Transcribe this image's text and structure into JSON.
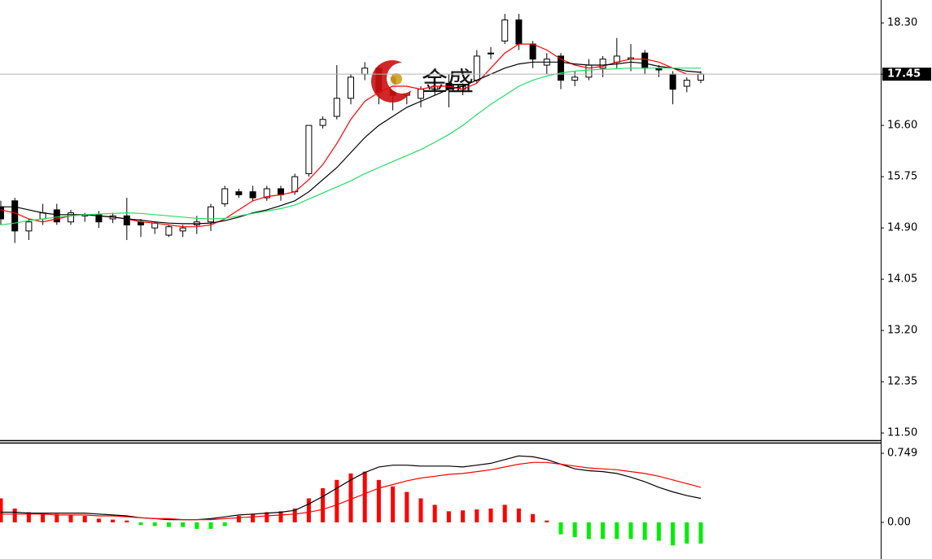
{
  "chart_data": [
    {
      "type": "candlestick",
      "watermark": "金盛",
      "ylim": [
        11.38,
        18.68
      ],
      "yticks": [
        {
          "value": 18.3,
          "label": "18.30"
        },
        17.45,
        {
          "value": 16.6,
          "label": "16.60"
        },
        15.75,
        {
          "value": 14.9,
          "label": "14.90"
        },
        14.05,
        {
          "value": 13.2,
          "label": "13.20"
        },
        12.35,
        {
          "value": 11.5,
          "label": "11.50"
        }
      ],
      "current_price": 17.45,
      "up_color": "#ffffff",
      "down_color": "#000000",
      "outline_color": "#000000",
      "open": [
        15.25,
        15.35,
        14.85,
        15.05,
        15.2,
        15.0,
        15.1,
        15.12,
        15.05,
        15.1,
        15.0,
        14.9,
        14.78,
        14.85,
        14.95,
        15.0,
        15.3,
        15.5,
        15.5,
        15.4,
        15.55,
        15.5,
        15.8,
        16.6,
        16.75,
        17.05,
        17.45,
        17.55,
        17.4,
        17.1,
        17.05,
        17.2,
        17.3,
        17.2,
        17.35,
        17.8,
        18.0,
        18.35,
        17.95,
        17.6,
        17.75,
        17.35,
        17.4,
        17.55,
        17.65,
        17.7,
        17.8,
        17.55,
        17.45,
        17.25,
        17.35
      ],
      "high": [
        15.35,
        15.4,
        15.05,
        15.3,
        15.3,
        15.2,
        15.15,
        15.18,
        15.15,
        15.4,
        15.05,
        15.0,
        14.95,
        14.95,
        15.1,
        15.3,
        15.6,
        15.55,
        15.6,
        15.6,
        15.6,
        15.8,
        16.6,
        16.75,
        17.6,
        17.45,
        17.65,
        17.6,
        17.45,
        17.3,
        17.25,
        17.4,
        17.45,
        17.3,
        17.85,
        17.9,
        18.45,
        18.45,
        18.0,
        17.8,
        17.8,
        17.5,
        17.7,
        17.75,
        18.05,
        17.95,
        17.85,
        17.6,
        17.5,
        17.4,
        17.5
      ],
      "low": [
        14.95,
        14.65,
        14.7,
        14.95,
        14.95,
        14.95,
        15.0,
        14.9,
        14.98,
        14.7,
        14.75,
        14.8,
        14.75,
        14.75,
        14.8,
        14.85,
        15.25,
        15.4,
        15.35,
        15.35,
        15.35,
        15.45,
        15.75,
        16.55,
        16.7,
        16.95,
        17.35,
        16.95,
        16.85,
        16.95,
        16.9,
        17.1,
        16.9,
        17.1,
        17.3,
        17.7,
        17.95,
        17.85,
        17.55,
        17.45,
        17.2,
        17.25,
        17.35,
        17.4,
        17.55,
        17.5,
        17.45,
        17.4,
        16.95,
        17.15,
        17.3
      ],
      "close": [
        15.05,
        14.85,
        15.0,
        15.15,
        15.0,
        15.15,
        15.12,
        15.0,
        15.1,
        14.95,
        14.95,
        14.98,
        14.92,
        14.9,
        15.0,
        15.25,
        15.55,
        15.45,
        15.4,
        15.55,
        15.45,
        15.75,
        16.6,
        16.7,
        17.05,
        17.4,
        17.55,
        17.15,
        17.1,
        17.2,
        17.2,
        17.25,
        17.2,
        17.25,
        17.75,
        17.8,
        18.35,
        17.95,
        17.7,
        17.7,
        17.35,
        17.4,
        17.6,
        17.7,
        17.75,
        17.72,
        17.55,
        17.52,
        17.2,
        17.35,
        17.45
      ],
      "series": [
        {
          "color": "#ff0000",
          "values": [
            15.2,
            15.15,
            15.05,
            15.0,
            15.05,
            15.1,
            15.12,
            15.1,
            15.08,
            15.05,
            15.0,
            14.98,
            14.95,
            14.92,
            14.92,
            14.95,
            15.05,
            15.2,
            15.35,
            15.42,
            15.45,
            15.5,
            15.7,
            15.95,
            16.3,
            16.7,
            17.0,
            17.15,
            17.25,
            17.25,
            17.2,
            17.25,
            17.25,
            17.2,
            17.3,
            17.55,
            17.8,
            17.95,
            17.95,
            17.85,
            17.7,
            17.6,
            17.55,
            17.58,
            17.65,
            17.7,
            17.7,
            17.65,
            17.55,
            17.45,
            17.45
          ]
        },
        {
          "color": "#000000",
          "values": [
            15.25,
            15.25,
            15.2,
            15.15,
            15.12,
            15.12,
            15.12,
            15.1,
            15.08,
            15.05,
            15.03,
            15.0,
            14.98,
            14.97,
            14.97,
            14.98,
            15.02,
            15.08,
            15.15,
            15.2,
            15.27,
            15.35,
            15.5,
            15.7,
            15.9,
            16.15,
            16.4,
            16.6,
            16.75,
            16.9,
            17.0,
            17.1,
            17.2,
            17.25,
            17.35,
            17.45,
            17.55,
            17.62,
            17.65,
            17.65,
            17.65,
            17.62,
            17.6,
            17.6,
            17.62,
            17.65,
            17.63,
            17.58,
            17.55,
            17.5,
            17.48
          ]
        },
        {
          "color": "#22dd66",
          "values": [
            14.95,
            14.98,
            15.02,
            15.05,
            15.08,
            15.1,
            15.12,
            15.13,
            15.14,
            15.15,
            15.14,
            15.12,
            15.1,
            15.08,
            15.06,
            15.05,
            15.06,
            15.1,
            15.14,
            15.18,
            15.22,
            15.28,
            15.38,
            15.48,
            15.58,
            15.68,
            15.8,
            15.9,
            16.0,
            16.1,
            16.2,
            16.32,
            16.45,
            16.6,
            16.78,
            16.95,
            17.1,
            17.25,
            17.35,
            17.42,
            17.47,
            17.5,
            17.52,
            17.53,
            17.54,
            17.55,
            17.55,
            17.55,
            17.55,
            17.55,
            17.55
          ]
        }
      ]
    },
    {
      "type": "macd",
      "ylim": [
        -0.397,
        0.855
      ],
      "yticks": [
        0.749,
        {
          "value": 0,
          "label": "0.00"
        }
      ],
      "pos_color": "#ff0000",
      "neg_color": "#00ee00",
      "histogram": [
        0.26,
        0.15,
        0.11,
        0.1,
        0.09,
        0.08,
        0.07,
        0.04,
        0.03,
        0.02,
        -0.03,
        -0.04,
        -0.05,
        -0.05,
        -0.07,
        -0.07,
        -0.04,
        0.07,
        0.09,
        0.11,
        0.12,
        0.15,
        0.26,
        0.37,
        0.46,
        0.53,
        0.55,
        0.46,
        0.39,
        0.33,
        0.26,
        0.19,
        0.12,
        0.13,
        0.14,
        0.15,
        0.19,
        0.15,
        0.09,
        0.02,
        -0.13,
        -0.16,
        -0.18,
        -0.18,
        -0.18,
        -0.18,
        -0.19,
        -0.2,
        -0.25,
        -0.23,
        -0.23
      ],
      "series": [
        {
          "color": "#000000",
          "values": [
            0.11,
            0.11,
            0.1,
            0.1,
            0.1,
            0.1,
            0.1,
            0.09,
            0.08,
            0.07,
            0.05,
            0.04,
            0.03,
            0.03,
            0.03,
            0.04,
            0.06,
            0.08,
            0.09,
            0.1,
            0.11,
            0.13,
            0.2,
            0.28,
            0.37,
            0.46,
            0.54,
            0.6,
            0.62,
            0.62,
            0.61,
            0.61,
            0.61,
            0.6,
            0.62,
            0.64,
            0.68,
            0.72,
            0.71,
            0.68,
            0.63,
            0.58,
            0.56,
            0.55,
            0.53,
            0.49,
            0.44,
            0.38,
            0.33,
            0.29,
            0.26
          ]
        },
        {
          "color": "#ff0000",
          "values": [
            0.09,
            0.09,
            0.09,
            0.09,
            0.08,
            0.08,
            0.08,
            0.07,
            0.07,
            0.06,
            0.05,
            0.04,
            0.04,
            0.03,
            0.03,
            0.03,
            0.04,
            0.05,
            0.06,
            0.07,
            0.08,
            0.09,
            0.11,
            0.14,
            0.19,
            0.25,
            0.31,
            0.37,
            0.41,
            0.45,
            0.48,
            0.5,
            0.52,
            0.53,
            0.55,
            0.57,
            0.6,
            0.63,
            0.65,
            0.65,
            0.63,
            0.61,
            0.59,
            0.58,
            0.57,
            0.55,
            0.53,
            0.5,
            0.46,
            0.42,
            0.38
          ]
        }
      ]
    }
  ]
}
